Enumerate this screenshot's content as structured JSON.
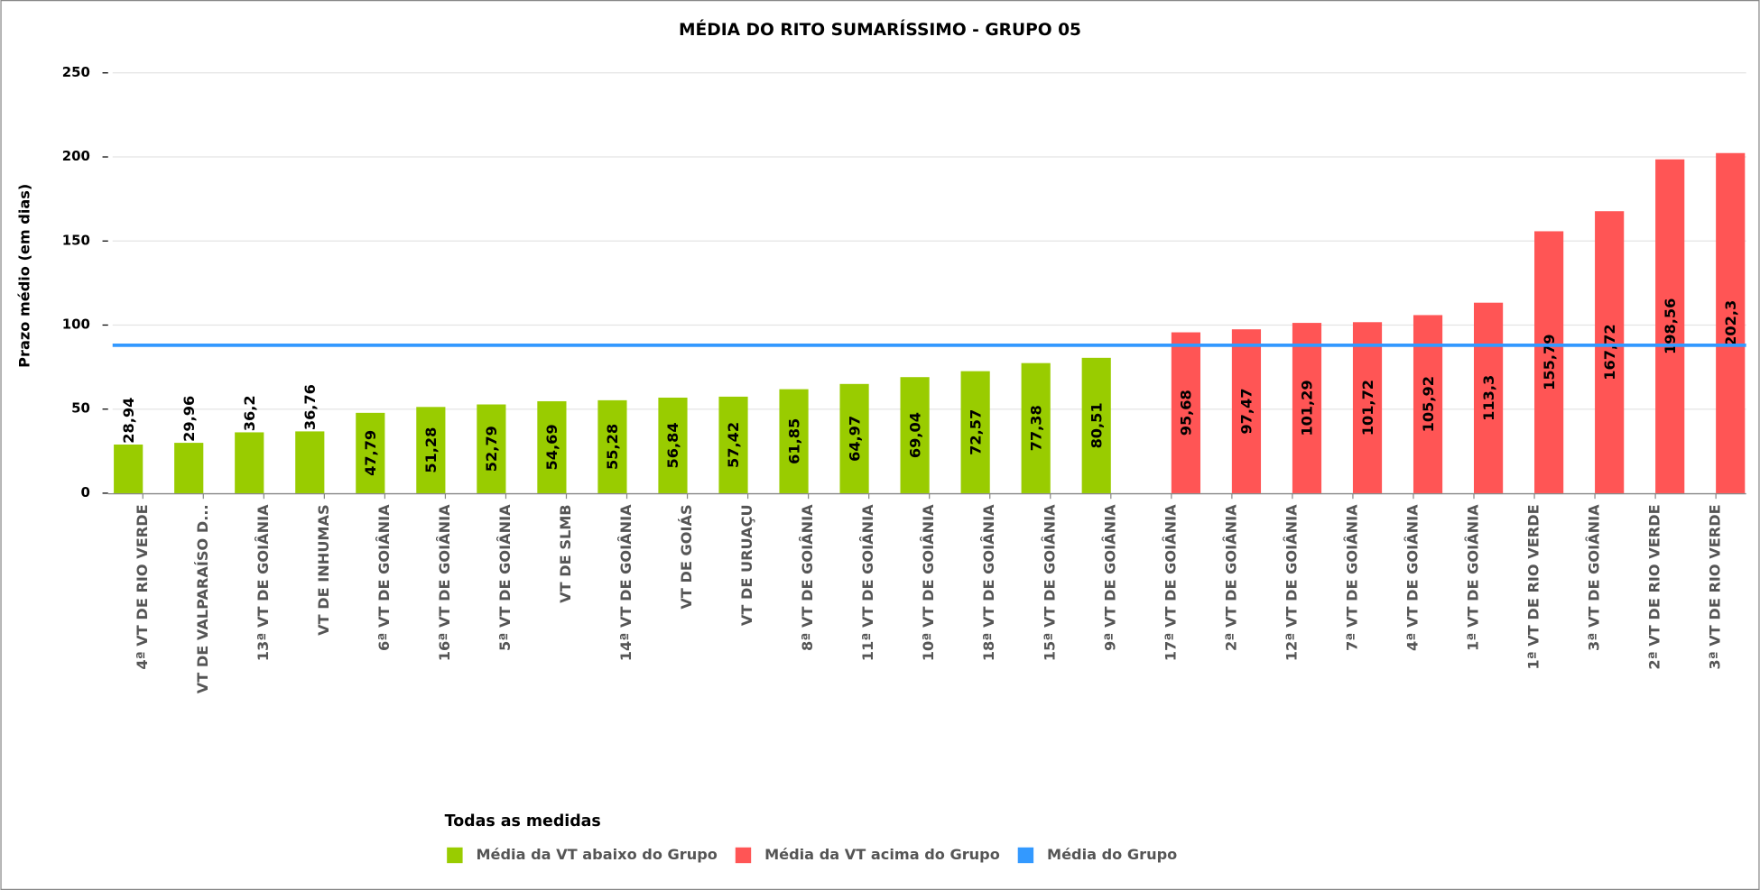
{
  "chart_data": {
    "type": "bar",
    "title": "MÉDIA DO RITO SUMARÍSSIMO - GRUPO 05",
    "y_label": "Prazo médio (em dias)",
    "categories": [
      "4ª VT DE RIO VERDE",
      "VT DE VALPARAÍSO D...",
      "13ª VT DE GOIÂNIA",
      "VT DE INHUMAS",
      "6ª VT DE GOIÂNIA",
      "16ª VT DE GOIÂNIA",
      "5ª VT DE GOIÂNIA",
      "VT DE SLMB",
      "14ª VT DE GOIÂNIA",
      "VT DE GOIÁS",
      "VT DE URUAÇU",
      "8ª VT DE GOIÂNIA",
      "11ª VT DE GOIÂNIA",
      "10ª VT DE GOIÂNIA",
      "18ª VT DE GOIÂNIA",
      "15ª VT DE GOIÂNIA",
      "9ª VT DE GOIÂNIA",
      "17ª VT DE GOIÂNIA",
      "2ª VT DE GOIÂNIA",
      "12ª VT DE GOIÂNIA",
      "7ª VT DE GOIÂNIA",
      "4ª VT DE GOIÂNIA",
      "1ª VT DE GOIÂNIA",
      "1ª VT DE RIO VERDE",
      "3ª VT DE GOIÂNIA",
      "2ª VT DE RIO VERDE",
      "3ª VT DE RIO VERDE"
    ],
    "series": [
      {
        "name": "Média da VT abaixo do Grupo",
        "color": "#99cc00",
        "values": [
          28.94,
          29.96,
          36.2,
          36.76,
          47.79,
          51.28,
          52.79,
          54.69,
          55.28,
          56.84,
          57.42,
          61.85,
          64.97,
          69.04,
          72.57,
          77.38,
          80.51,
          null,
          null,
          null,
          null,
          null,
          null,
          null,
          null,
          null,
          null
        ],
        "value_labels": [
          "28,94",
          "29,96",
          "36,2",
          "36,76",
          "47,79",
          "51,28",
          "52,79",
          "54,69",
          "55,28",
          "56,84",
          "57,42",
          "61,85",
          "64,97",
          "69,04",
          "72,57",
          "77,38",
          "80,51",
          null,
          null,
          null,
          null,
          null,
          null,
          null,
          null,
          null,
          null
        ]
      },
      {
        "name": "Média da VT acima do Grupo",
        "color": "#ff5555",
        "values": [
          null,
          null,
          null,
          null,
          null,
          null,
          null,
          null,
          null,
          null,
          null,
          null,
          null,
          null,
          null,
          null,
          null,
          95.68,
          97.47,
          101.29,
          101.72,
          105.92,
          113.3,
          155.79,
          167.72,
          198.56,
          202.3
        ],
        "value_labels": [
          null,
          null,
          null,
          null,
          null,
          null,
          null,
          null,
          null,
          null,
          null,
          null,
          null,
          null,
          null,
          null,
          null,
          "95,68",
          "97,47",
          "101,29",
          "101,72",
          "105,92",
          "113,3",
          "155,79",
          "167,72",
          "198,56",
          "202,3"
        ]
      }
    ],
    "reference_line": {
      "name": "Média do Grupo",
      "color": "#3399ff",
      "value": 88
    },
    "ylim": [
      0,
      258
    ],
    "yticks": [
      0,
      50,
      100,
      150,
      200,
      250
    ],
    "grid": true,
    "legend": {
      "title": "Todas as medidas",
      "position": "bottom"
    }
  }
}
